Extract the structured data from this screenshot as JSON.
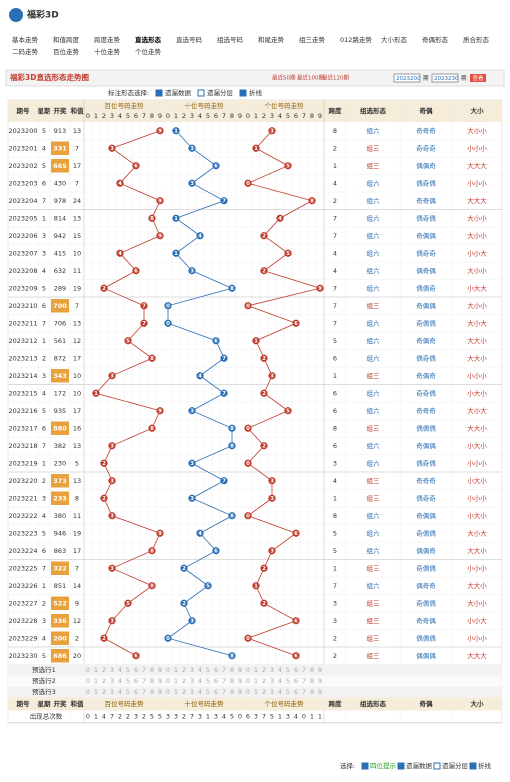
{
  "header": {
    "logo": "福彩3D",
    "nav": [
      "基本走势",
      "和值跨度",
      "跨度走势",
      "直选形态",
      "直选号码",
      "组选号码",
      "和尾走势",
      "组三走势",
      "012路走势",
      "大小形态",
      "奇偶形态",
      "质合形态",
      "二码走势",
      "百位走势",
      "十位走势",
      "个位走势"
    ]
  },
  "panel": {
    "title": "福彩3D直选形态走势图",
    "recent": [
      "最近50期",
      "最近100期",
      "最近120期"
    ],
    "from": "2023200",
    "to": "2023230",
    "issue_label": "期",
    "query": "查看"
  },
  "options": {
    "label": "标注形态选择:",
    "items": [
      "遗漏数据",
      "遗漏分层",
      "折线"
    ]
  },
  "table": {
    "columns": {
      "issue": "期号",
      "week": "星期",
      "number": "开奖",
      "sum": "和值",
      "positions": [
        "百位号码走势",
        "十位号码走势",
        "个位号码走势"
      ],
      "span": "跨度",
      "form": "组选形态",
      "parity": "奇偶",
      "size": "大小"
    },
    "digits": [
      0,
      1,
      2,
      3,
      4,
      5,
      6,
      7,
      8,
      9
    ],
    "rows": [
      {
        "issue": "2023200",
        "week": 5,
        "number": "913",
        "sum": 13,
        "digits": [
          9,
          1,
          3
        ],
        "span": 8,
        "form": "组六",
        "parity": "奇奇奇",
        "size": "大小小"
      },
      {
        "issue": "2023201",
        "week": 4,
        "number": "331",
        "sum": 7,
        "digits": [
          3,
          3,
          1
        ],
        "span": 2,
        "form": "组三",
        "parity": "奇奇奇",
        "size": "小小小"
      },
      {
        "issue": "2023202",
        "week": 5,
        "number": "665",
        "sum": 17,
        "digits": [
          6,
          6,
          5
        ],
        "span": 1,
        "form": "组三",
        "parity": "偶偶奇",
        "size": "大大大"
      },
      {
        "issue": "2023203",
        "week": 6,
        "number": "430",
        "sum": 7,
        "digits": [
          4,
          3,
          0
        ],
        "span": 4,
        "form": "组六",
        "parity": "偶奇偶",
        "size": "小小小"
      },
      {
        "issue": "2023204",
        "week": 7,
        "number": "978",
        "sum": 24,
        "digits": [
          9,
          7,
          8
        ],
        "span": 2,
        "form": "组六",
        "parity": "奇奇偶",
        "size": "大大大"
      },
      {
        "issue": "2023205",
        "week": 1,
        "number": "814",
        "sum": 13,
        "digits": [
          8,
          1,
          4
        ],
        "span": 7,
        "form": "组六",
        "parity": "偶奇偶",
        "size": "大小小"
      },
      {
        "issue": "2023206",
        "week": 3,
        "number": "942",
        "sum": 15,
        "digits": [
          9,
          4,
          2
        ],
        "span": 7,
        "form": "组六",
        "parity": "奇偶偶",
        "size": "大小小"
      },
      {
        "issue": "2023207",
        "week": 3,
        "number": "415",
        "sum": 10,
        "digits": [
          4,
          1,
          5
        ],
        "span": 4,
        "form": "组六",
        "parity": "偶奇奇",
        "size": "小小大"
      },
      {
        "issue": "2023208",
        "week": 4,
        "number": "632",
        "sum": 11,
        "digits": [
          6,
          3,
          2
        ],
        "span": 4,
        "form": "组六",
        "parity": "偶奇偶",
        "size": "大小小"
      },
      {
        "issue": "2023209",
        "week": 5,
        "number": "289",
        "sum": 19,
        "digits": [
          2,
          8,
          9
        ],
        "span": 7,
        "form": "组六",
        "parity": "偶偶奇",
        "size": "小大大"
      },
      {
        "issue": "2023210",
        "week": 6,
        "number": "700",
        "sum": 7,
        "digits": [
          7,
          0,
          0
        ],
        "span": 7,
        "form": "组三",
        "parity": "奇偶偶",
        "size": "大小小"
      },
      {
        "issue": "2023211",
        "week": 7,
        "number": "706",
        "sum": 13,
        "digits": [
          7,
          0,
          6
        ],
        "span": 7,
        "form": "组六",
        "parity": "奇偶偶",
        "size": "大小大"
      },
      {
        "issue": "2023212",
        "week": 1,
        "number": "561",
        "sum": 12,
        "digits": [
          5,
          6,
          1
        ],
        "span": 5,
        "form": "组六",
        "parity": "奇偶奇",
        "size": "大大小"
      },
      {
        "issue": "2023213",
        "week": 2,
        "number": "872",
        "sum": 17,
        "digits": [
          8,
          7,
          2
        ],
        "span": 6,
        "form": "组六",
        "parity": "偶奇偶",
        "size": "大大小"
      },
      {
        "issue": "2023214",
        "week": 3,
        "number": "343",
        "sum": 10,
        "digits": [
          3,
          4,
          3
        ],
        "span": 1,
        "form": "组三",
        "parity": "奇偶奇",
        "size": "小小小"
      },
      {
        "issue": "2023215",
        "week": 4,
        "number": "172",
        "sum": 10,
        "digits": [
          1,
          7,
          2
        ],
        "span": 6,
        "form": "组六",
        "parity": "奇奇偶",
        "size": "小大小"
      },
      {
        "issue": "2023216",
        "week": 5,
        "number": "935",
        "sum": 17,
        "digits": [
          9,
          3,
          5
        ],
        "span": 6,
        "form": "组六",
        "parity": "奇奇奇",
        "size": "大小大"
      },
      {
        "issue": "2023217",
        "week": 6,
        "number": "880",
        "sum": 16,
        "digits": [
          8,
          8,
          0
        ],
        "span": 8,
        "form": "组三",
        "parity": "偶偶偶",
        "size": "大大小"
      },
      {
        "issue": "2023218",
        "week": 7,
        "number": "382",
        "sum": 13,
        "digits": [
          3,
          8,
          2
        ],
        "span": 6,
        "form": "组六",
        "parity": "奇偶偶",
        "size": "小大小"
      },
      {
        "issue": "2023219",
        "week": 1,
        "number": "230",
        "sum": 5,
        "digits": [
          2,
          3,
          0
        ],
        "span": 3,
        "form": "组六",
        "parity": "偶奇偶",
        "size": "小小小"
      },
      {
        "issue": "2023220",
        "week": 2,
        "number": "373",
        "sum": 13,
        "digits": [
          3,
          7,
          3
        ],
        "span": 4,
        "form": "组三",
        "parity": "奇奇奇",
        "size": "小大小"
      },
      {
        "issue": "2023221",
        "week": 3,
        "number": "233",
        "sum": 8,
        "digits": [
          2,
          3,
          3
        ],
        "span": 1,
        "form": "组三",
        "parity": "偶奇奇",
        "size": "小小小"
      },
      {
        "issue": "2023222",
        "week": 4,
        "number": "380",
        "sum": 11,
        "digits": [
          3,
          8,
          0
        ],
        "span": 8,
        "form": "组六",
        "parity": "奇偶偶",
        "size": "小大小"
      },
      {
        "issue": "2023223",
        "week": 5,
        "number": "946",
        "sum": 19,
        "digits": [
          9,
          4,
          6
        ],
        "span": 5,
        "form": "组六",
        "parity": "奇偶偶",
        "size": "大小大"
      },
      {
        "issue": "2023224",
        "week": 6,
        "number": "863",
        "sum": 17,
        "digits": [
          8,
          6,
          3
        ],
        "span": 5,
        "form": "组六",
        "parity": "偶偶奇",
        "size": "大大小"
      },
      {
        "issue": "2023225",
        "week": 7,
        "number": "322",
        "sum": 7,
        "digits": [
          3,
          2,
          2
        ],
        "span": 1,
        "form": "组三",
        "parity": "奇偶偶",
        "size": "小小小"
      },
      {
        "issue": "2023226",
        "week": 1,
        "number": "851",
        "sum": 14,
        "digits": [
          8,
          5,
          1
        ],
        "span": 7,
        "form": "组六",
        "parity": "偶奇奇",
        "size": "大大小"
      },
      {
        "issue": "2023227",
        "week": 2,
        "number": "522",
        "sum": 9,
        "digits": [
          5,
          2,
          2
        ],
        "span": 3,
        "form": "组三",
        "parity": "奇偶偶",
        "size": "大小小"
      },
      {
        "issue": "2023228",
        "week": 3,
        "number": "336",
        "sum": 12,
        "digits": [
          3,
          3,
          6
        ],
        "span": 3,
        "form": "组三",
        "parity": "奇奇偶",
        "size": "小小大"
      },
      {
        "issue": "2023229",
        "week": 4,
        "number": "200",
        "sum": 2,
        "digits": [
          2,
          0,
          0
        ],
        "span": 2,
        "form": "组三",
        "parity": "偶偶偶",
        "size": "小小小"
      },
      {
        "issue": "2023230",
        "week": 5,
        "number": "686",
        "sum": 20,
        "digits": [
          6,
          8,
          6
        ],
        "span": 2,
        "form": "组三",
        "parity": "偶偶偶",
        "size": "大大大"
      }
    ],
    "preselect": [
      "预选行1",
      "预选行2",
      "预选行3"
    ],
    "stats": {
      "label": "出现总次数",
      "counts": [
        [
          0,
          1,
          4,
          7,
          2,
          2,
          3,
          2,
          5,
          5
        ],
        [
          3,
          3,
          2,
          7,
          3,
          1,
          3,
          4,
          5,
          0
        ],
        [
          6,
          3,
          7,
          5,
          1,
          3,
          4,
          0,
          1,
          1
        ]
      ]
    }
  },
  "footer": {
    "label": "选择:",
    "items": [
      "四位提示",
      "遗漏数据",
      "遗漏分层",
      "折线"
    ]
  }
}
